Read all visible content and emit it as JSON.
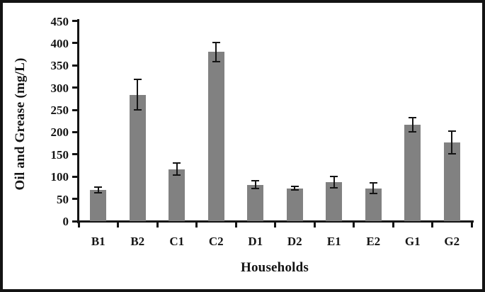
{
  "chart_data": {
    "type": "bar",
    "title": "",
    "xlabel": "Households",
    "ylabel": "Oil and Grease (mg/L)",
    "categories": [
      "B1",
      "B2",
      "C1",
      "C2",
      "D1",
      "D2",
      "E1",
      "E2",
      "G1",
      "G2"
    ],
    "series": [
      {
        "name": "Oil and Grease",
        "values": [
          70,
          284,
          117,
          380,
          82,
          74,
          88,
          74,
          217,
          177
        ],
        "error_bars": [
          6,
          34,
          13,
          22,
          9,
          4,
          13,
          12,
          16,
          26
        ]
      }
    ],
    "ylim": [
      0,
      450
    ],
    "ytick_step": 50,
    "yticks": [
      0,
      50,
      100,
      150,
      200,
      250,
      300,
      350,
      400,
      450
    ],
    "grid": false,
    "legend_position": "none",
    "bar_color": "#818181",
    "axis_color": "#141414",
    "frame_color": "#141414",
    "background_color": "#ffffff"
  }
}
